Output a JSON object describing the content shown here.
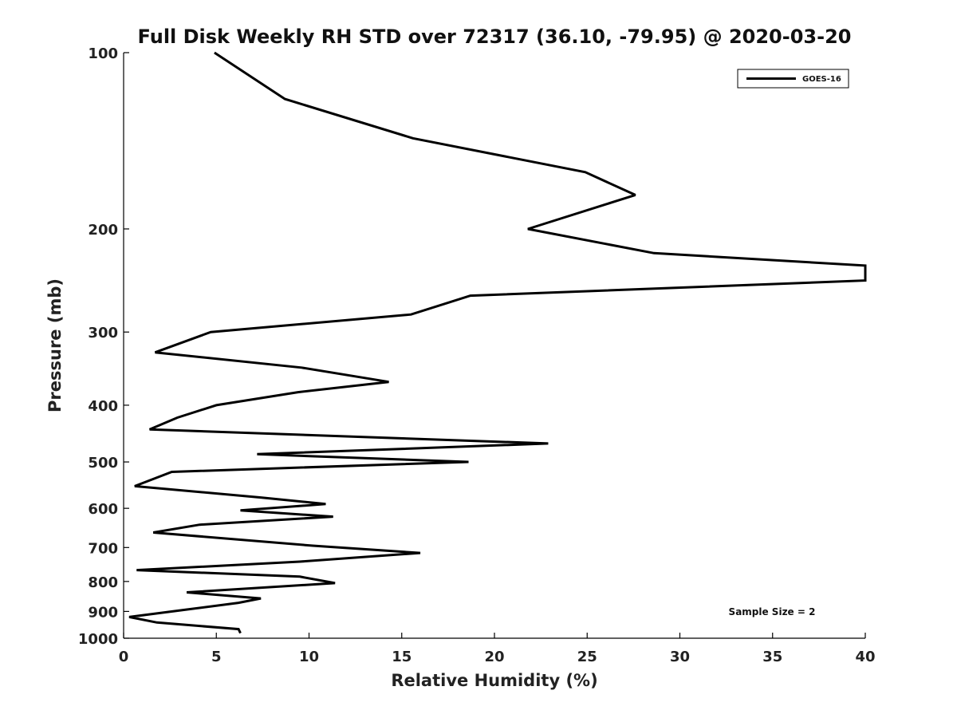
{
  "chart_data": {
    "type": "line",
    "title": "Full Disk Weekly RH STD over 72317 (36.10, -79.95) @ 2020-03-20",
    "xlabel": "Relative Humidity (%)",
    "ylabel": "Pressure (mb)",
    "xlim": [
      0,
      40
    ],
    "ylim": [
      1000,
      100
    ],
    "yscale": "log",
    "x_ticks": [
      "0",
      "5",
      "10",
      "15",
      "20",
      "25",
      "30",
      "35",
      "40"
    ],
    "y_ticks": [
      "100",
      "200",
      "300",
      "400",
      "500",
      "600",
      "700",
      "800",
      "900",
      "1000"
    ],
    "grid": false,
    "legend_position": "top-right",
    "annotation": "Sample Size = 2",
    "series": [
      {
        "name": "GOES-16",
        "color": "#000000",
        "points": [
          [
            4.9,
            100
          ],
          [
            8.7,
            120
          ],
          [
            15.6,
            140
          ],
          [
            24.9,
            160
          ],
          [
            27.6,
            175
          ],
          [
            21.8,
            200
          ],
          [
            28.6,
            220
          ],
          [
            40.0,
            231
          ],
          [
            40.0,
            245
          ],
          [
            18.7,
            260
          ],
          [
            15.5,
            280
          ],
          [
            4.7,
            300
          ],
          [
            1.7,
            325
          ],
          [
            9.6,
            345
          ],
          [
            14.3,
            365
          ],
          [
            9.4,
            380
          ],
          [
            5.0,
            400
          ],
          [
            2.9,
            420
          ],
          [
            1.4,
            440
          ],
          [
            22.9,
            465
          ],
          [
            7.2,
            485
          ],
          [
            18.6,
            500
          ],
          [
            2.6,
            520
          ],
          [
            0.6,
            550
          ],
          [
            7.4,
            575
          ],
          [
            10.9,
            590
          ],
          [
            6.3,
            605
          ],
          [
            11.3,
            620
          ],
          [
            4.1,
            640
          ],
          [
            1.6,
            660
          ],
          [
            10.2,
            695
          ],
          [
            16.0,
            715
          ],
          [
            9.5,
            740
          ],
          [
            0.7,
            765
          ],
          [
            9.5,
            785
          ],
          [
            11.4,
            805
          ],
          [
            3.4,
            835
          ],
          [
            7.4,
            855
          ],
          [
            6.2,
            870
          ],
          [
            0.3,
            920
          ],
          [
            1.8,
            940
          ],
          [
            6.2,
            965
          ],
          [
            6.3,
            980
          ]
        ]
      }
    ]
  }
}
